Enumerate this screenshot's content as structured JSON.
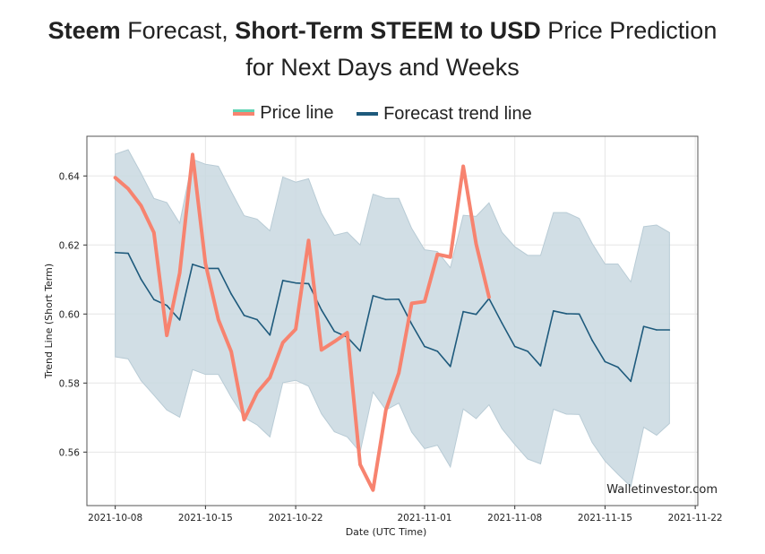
{
  "header": {
    "title_bold_1": "Steem",
    "title_text_1": " Forecast, ",
    "title_bold_2": "Short-Term STEEM to USD",
    "title_text_2": " Price Prediction",
    "title_line_2": "for Next Days and Weeks"
  },
  "colors": {
    "price_line": "#f7836f",
    "price_legend_accent": "#5fd3b3",
    "trend_line": "#1e5a7c",
    "band_fill": "#c9d8e0"
  },
  "chart_data": {
    "type": "line",
    "title": "Steem Forecast, Short-Term STEEM to USD Price Prediction for Next Days and Weeks",
    "xlabel": "Date (UTC Time)",
    "ylabel": "Trend Line (Short Term)",
    "x_start": "2021-10-08",
    "xlim_days": [
      -2.2,
      45.2
    ],
    "ylim": [
      0.5445,
      0.6515
    ],
    "grid": true,
    "legend_position": "top-center",
    "watermark": "Walletinvestor.com",
    "x_ticks": [
      {
        "day": 0,
        "label": "2021-10-08"
      },
      {
        "day": 7,
        "label": "2021-10-15"
      },
      {
        "day": 14,
        "label": "2021-10-22"
      },
      {
        "day": 24,
        "label": "2021-11-01"
      },
      {
        "day": 31,
        "label": "2021-11-08"
      },
      {
        "day": 38,
        "label": "2021-11-15"
      },
      {
        "day": 45,
        "label": "2021-11-22"
      }
    ],
    "y_ticks": [
      {
        "value": 0.56,
        "label": "0.56"
      },
      {
        "value": 0.58,
        "label": "0.58"
      },
      {
        "value": 0.6,
        "label": "0.60"
      },
      {
        "value": 0.62,
        "label": "0.62"
      },
      {
        "value": 0.64,
        "label": "0.64"
      }
    ],
    "series": [
      {
        "name": "Price line",
        "values": [
          0.6395,
          0.6363,
          0.6314,
          0.6236,
          0.5938,
          0.6119,
          0.6462,
          0.6146,
          0.5984,
          0.5891,
          0.5694,
          0.5772,
          0.5816,
          0.5917,
          0.5956,
          0.6213,
          0.5896,
          0.592,
          0.5946,
          0.5564,
          0.549,
          0.5722,
          0.5829,
          0.6031,
          0.6036,
          0.6173,
          0.6165,
          0.6428,
          0.6203,
          0.6049
        ]
      },
      {
        "name": "Forecast trend line",
        "values": [
          0.6178,
          0.6176,
          0.6101,
          0.6042,
          0.6025,
          0.5983,
          0.6144,
          0.6132,
          0.6132,
          0.6058,
          0.5996,
          0.5984,
          0.5939,
          0.6097,
          0.609,
          0.6088,
          0.6012,
          0.595,
          0.5933,
          0.5893,
          0.6053,
          0.6042,
          0.6043,
          0.5971,
          0.5906,
          0.5892,
          0.5848,
          0.6007,
          0.5999,
          0.6045,
          0.5974,
          0.5906,
          0.5892,
          0.585,
          0.6009,
          0.6001,
          0.6,
          0.5924,
          0.5862,
          0.5846,
          0.5805,
          0.5964,
          0.5954,
          0.5954
        ]
      },
      {
        "name": "Forecast band upper",
        "values": [
          0.6463,
          0.6476,
          0.6408,
          0.6335,
          0.6323,
          0.6263,
          0.6448,
          0.6434,
          0.6428,
          0.6355,
          0.6285,
          0.6275,
          0.6241,
          0.6397,
          0.6382,
          0.6392,
          0.6292,
          0.6228,
          0.6237,
          0.62,
          0.6347,
          0.6335,
          0.6335,
          0.6248,
          0.6186,
          0.6181,
          0.6134,
          0.6286,
          0.6283,
          0.6322,
          0.6237,
          0.6195,
          0.617,
          0.617,
          0.6294,
          0.6294,
          0.6277,
          0.6205,
          0.6145,
          0.6145,
          0.6093,
          0.6253,
          0.6258,
          0.6236
        ]
      },
      {
        "name": "Forecast band lower",
        "values": [
          0.5876,
          0.587,
          0.5807,
          0.5765,
          0.5722,
          0.5701,
          0.5839,
          0.5825,
          0.5825,
          0.5759,
          0.57,
          0.5679,
          0.5644,
          0.5801,
          0.5808,
          0.5791,
          0.5711,
          0.5659,
          0.5644,
          0.56,
          0.5774,
          0.5722,
          0.5742,
          0.5658,
          0.561,
          0.562,
          0.5557,
          0.5725,
          0.5697,
          0.5737,
          0.5668,
          0.5622,
          0.558,
          0.5566,
          0.5724,
          0.571,
          0.5709,
          0.5628,
          0.5574,
          0.5536,
          0.55,
          0.5672,
          0.5649,
          0.5683
        ]
      }
    ]
  }
}
